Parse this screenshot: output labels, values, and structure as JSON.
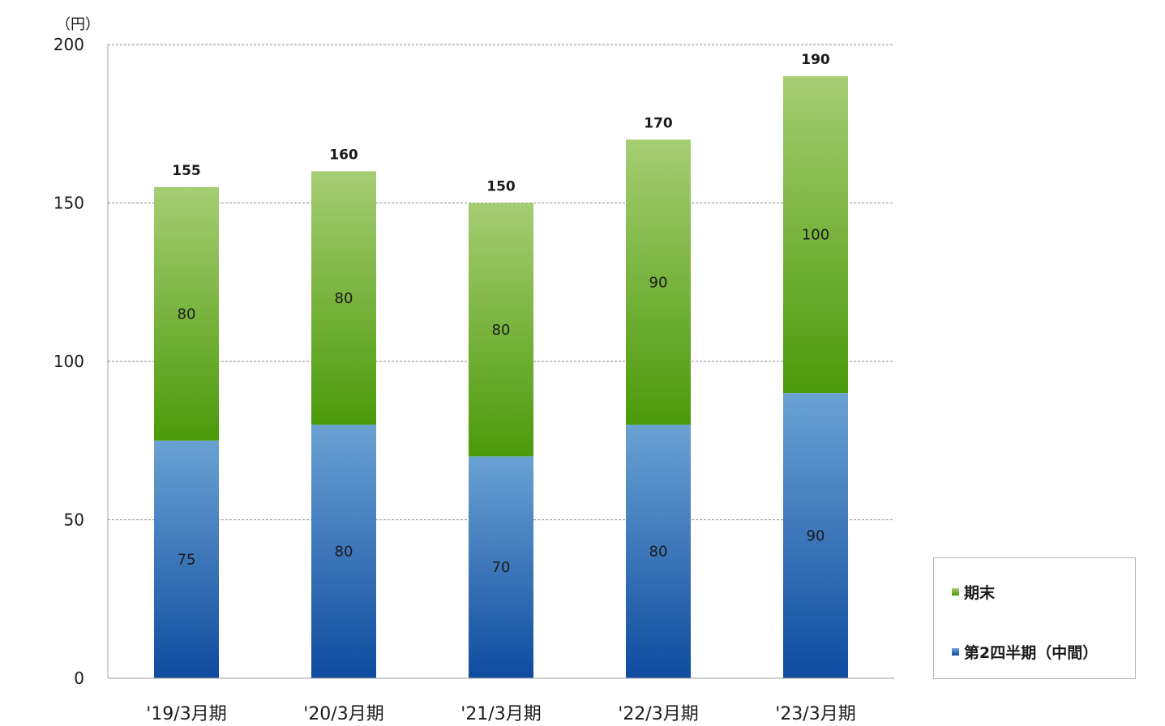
{
  "chart_data": {
    "type": "bar",
    "stacked": true,
    "unit_label": "（円）",
    "categories": [
      "'19/3月期",
      "'20/3月期",
      "'21/3月期",
      "'22/3月期",
      "'23/3月期"
    ],
    "series": [
      {
        "name": "第2四半期（中間）",
        "values": [
          75,
          80,
          70,
          80,
          90
        ],
        "color_top": "#6aa2d3",
        "color_bottom": "#0f4b9f"
      },
      {
        "name": "期末",
        "values": [
          80,
          80,
          80,
          90,
          100
        ],
        "color_top": "#a6cd73",
        "color_bottom": "#4b9a0a"
      }
    ],
    "totals": [
      155,
      160,
      150,
      170,
      190
    ],
    "yticks": [
      0,
      50,
      100,
      150,
      200
    ],
    "ylim": [
      0,
      200
    ],
    "grid": true,
    "legend_position": "bottom-right"
  }
}
